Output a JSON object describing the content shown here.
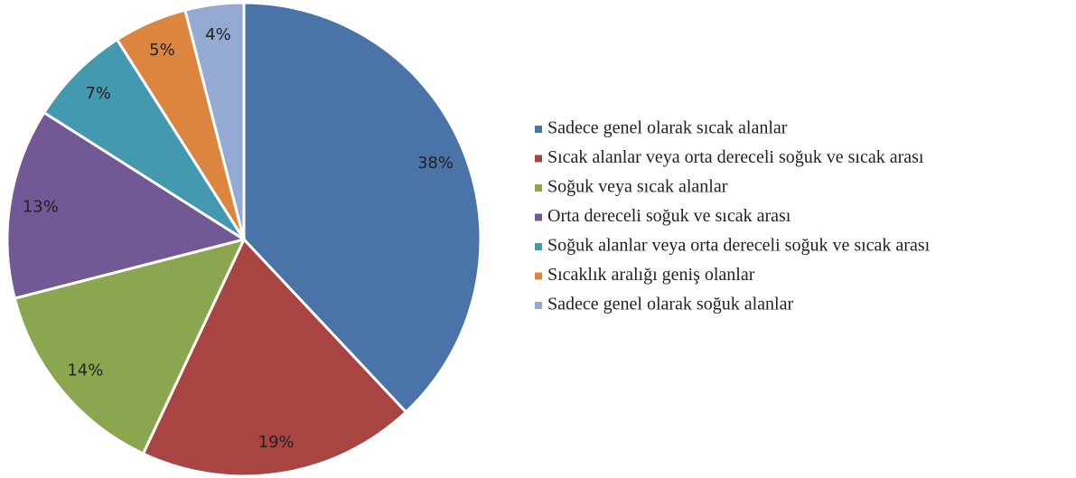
{
  "chart_data": {
    "type": "pie",
    "categories": [
      "Sadece genel olarak sıcak alanlar",
      "Sıcak alanlar veya orta dereceli soğuk ve sıcak arası",
      "Soğuk veya sıcak alanlar",
      "Orta dereceli soğuk ve sıcak arası",
      "Soğuk alanlar veya orta dereceli soğuk ve sıcak arası",
      "Sıcaklık aralığı geniş olanlar",
      "Sadece genel olarak soğuk alanlar"
    ],
    "values": [
      38,
      19,
      14,
      13,
      7,
      5,
      4
    ],
    "value_labels": [
      "38%",
      "19%",
      "14%",
      "13%",
      "7%",
      "5%",
      "4%"
    ],
    "colors": [
      "#4a73a8",
      "#a84542",
      "#8aa64e",
      "#735896",
      "#4399b0",
      "#dc853f",
      "#94aad3"
    ],
    "legend": "right"
  }
}
